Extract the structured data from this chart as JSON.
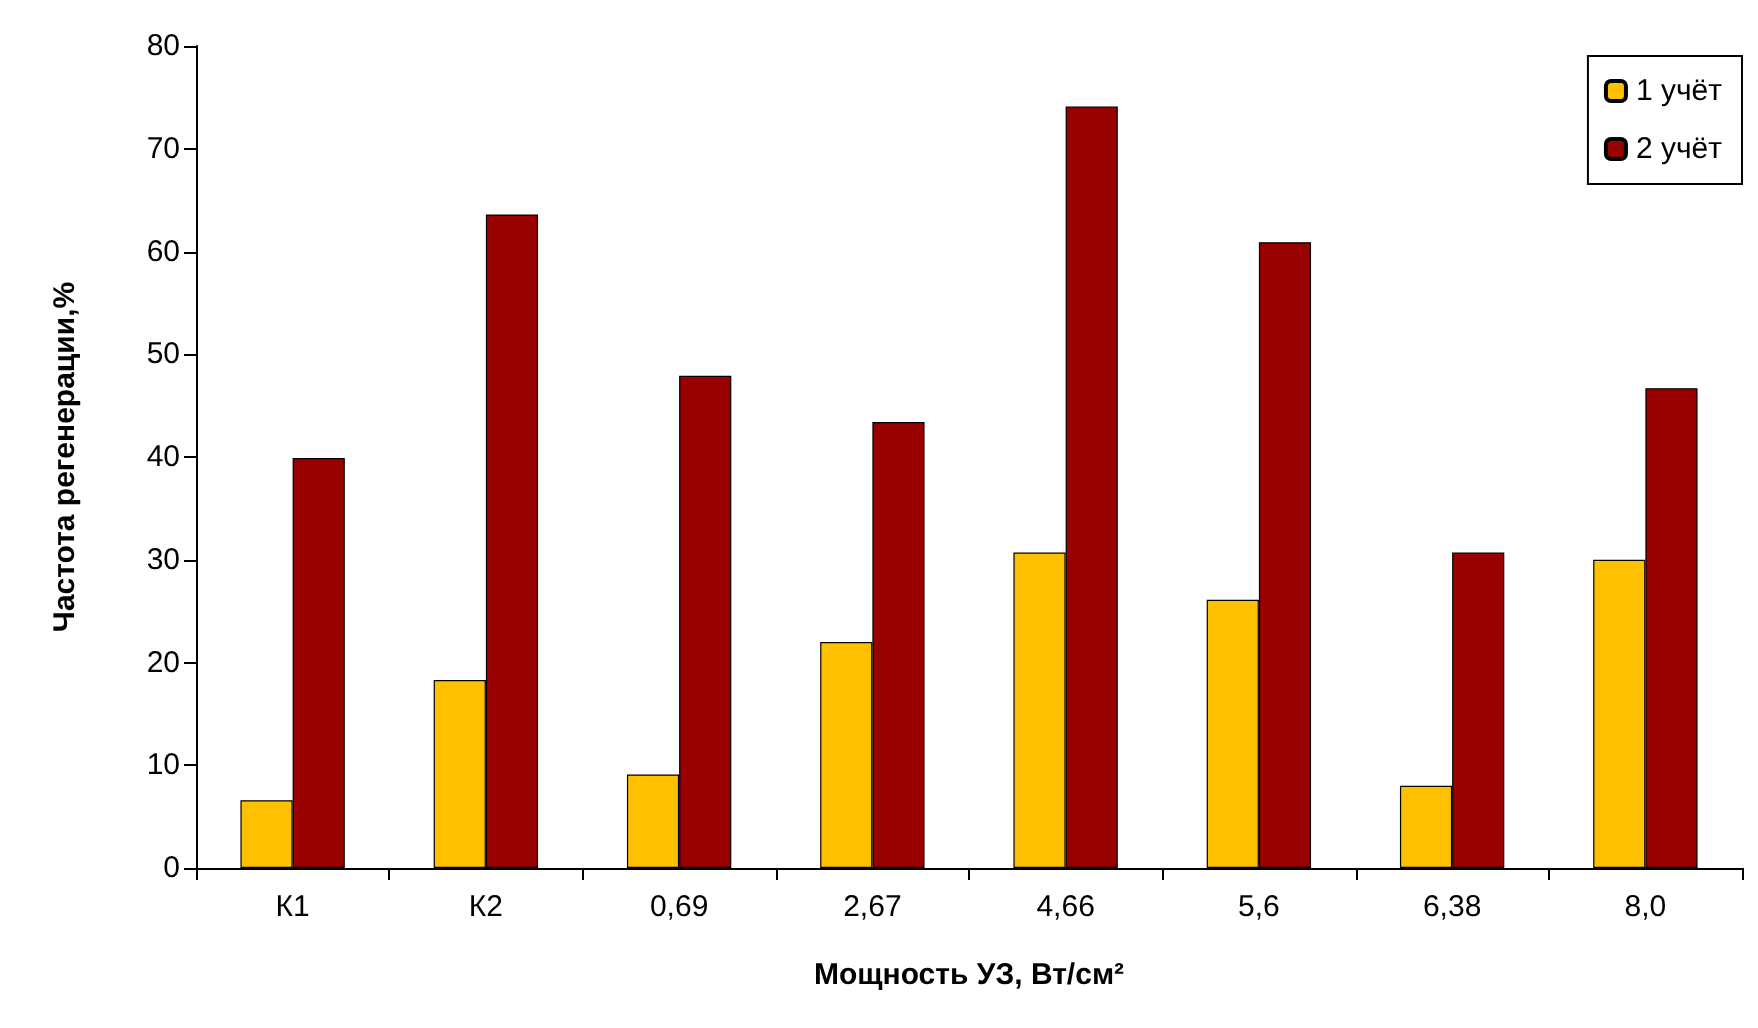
{
  "chart_data": {
    "type": "bar",
    "xlabel": "Мощность УЗ, Вт/см²",
    "ylabel": "Частота регенерации,%",
    "categories": [
      "К1",
      "К2",
      "0,69",
      "2,67",
      "4,66",
      "5,6",
      "6,38",
      "8,0"
    ],
    "series": [
      {
        "name": "1 учёт",
        "color": "#ffc000",
        "values": [
          6.6,
          18.3,
          9.1,
          22.0,
          30.7,
          26.1,
          8.0,
          30.0
        ]
      },
      {
        "name": "2 учёт",
        "color": "#990000",
        "values": [
          39.9,
          63.6,
          47.9,
          43.4,
          74.1,
          60.9,
          30.7,
          46.7
        ]
      }
    ],
    "ylim": [
      0,
      80
    ],
    "yticks": [
      0,
      10,
      20,
      30,
      40,
      50,
      60,
      70,
      80
    ],
    "grid": false,
    "legend": "top right"
  }
}
